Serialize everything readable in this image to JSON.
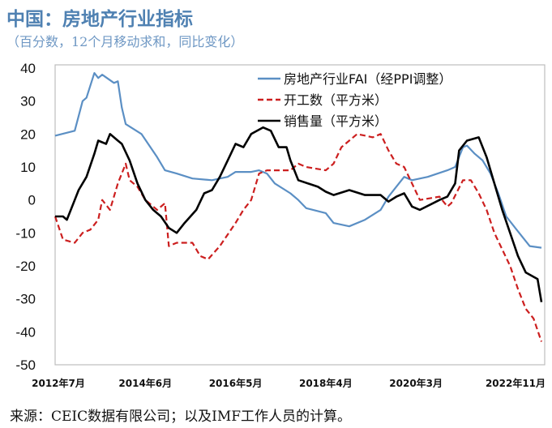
{
  "title": "中国：房地产行业指标",
  "subtitle": "（百分数，12个月移动求和，同比变化）",
  "source": "来源：CEIC数据有限公司；以及IMF工作人员的计算。",
  "chart_data": {
    "type": "line",
    "title": "中国：房地产行业指标",
    "ylim": [
      -50,
      40
    ],
    "yticks": [
      "40",
      "30",
      "20",
      "10",
      "0",
      "-10",
      "-20",
      "-30",
      "-40",
      "-50"
    ],
    "xlim": [
      "2012-07",
      "2022-11"
    ],
    "xticks": [
      {
        "date": "2012-07",
        "label": "2012年7月"
      },
      {
        "date": "2014-06",
        "label": "2014年6月"
      },
      {
        "date": "2016-05",
        "label": "2016年5月"
      },
      {
        "date": "2018-04",
        "label": "2018年4月"
      },
      {
        "date": "2020-03",
        "label": "2020年3月"
      },
      {
        "date": "2022-11",
        "label": "2022年11月"
      }
    ],
    "grid": false,
    "legend_placement": "top-center",
    "series": [
      {
        "name": "房地产行业FAI（经PPI调整）",
        "color": "#5b8fc4",
        "style": "solid",
        "points": [
          [
            "2012-07",
            19.5
          ],
          [
            "2012-12",
            21
          ],
          [
            "2013-02",
            30
          ],
          [
            "2013-03",
            31
          ],
          [
            "2013-05",
            38.5
          ],
          [
            "2013-06",
            37
          ],
          [
            "2013-07",
            38
          ],
          [
            "2013-10",
            35.5
          ],
          [
            "2013-11",
            36
          ],
          [
            "2013-12",
            28
          ],
          [
            "2014-01",
            23
          ],
          [
            "2014-05",
            20
          ],
          [
            "2014-09",
            13
          ],
          [
            "2014-11",
            9
          ],
          [
            "2015-02",
            8
          ],
          [
            "2015-06",
            6.5
          ],
          [
            "2015-11",
            6
          ],
          [
            "2016-03",
            7
          ],
          [
            "2016-05",
            8.5
          ],
          [
            "2016-09",
            8.5
          ],
          [
            "2016-11",
            9
          ],
          [
            "2017-01",
            8
          ],
          [
            "2017-03",
            5
          ],
          [
            "2017-07",
            2
          ],
          [
            "2017-09",
            0
          ],
          [
            "2017-11",
            -2.5
          ],
          [
            "2018-04",
            -4
          ],
          [
            "2018-06",
            -7
          ],
          [
            "2018-10",
            -8
          ],
          [
            "2019-02",
            -6
          ],
          [
            "2019-06",
            -3
          ],
          [
            "2019-08",
            1
          ],
          [
            "2019-12",
            7
          ],
          [
            "2020-02",
            6
          ],
          [
            "2020-06",
            7
          ],
          [
            "2020-11",
            9
          ],
          [
            "2021-01",
            10
          ],
          [
            "2021-03",
            16
          ],
          [
            "2021-04",
            16.5
          ],
          [
            "2021-06",
            14
          ],
          [
            "2021-08",
            12
          ],
          [
            "2021-10",
            8
          ],
          [
            "2021-12",
            2
          ],
          [
            "2022-02",
            -5
          ],
          [
            "2022-04",
            -8
          ],
          [
            "2022-06",
            -11
          ],
          [
            "2022-08",
            -14
          ],
          [
            "2022-11",
            -14.5
          ]
        ]
      },
      {
        "name": "开工数（平方米）",
        "color": "#cc1f1f",
        "style": "dashed",
        "points": [
          [
            "2012-07",
            -5
          ],
          [
            "2012-09",
            -12
          ],
          [
            "2012-12",
            -13
          ],
          [
            "2013-02",
            -10
          ],
          [
            "2013-04",
            -9
          ],
          [
            "2013-06",
            -6
          ],
          [
            "2013-07",
            0
          ],
          [
            "2013-09",
            -3
          ],
          [
            "2013-11",
            5
          ],
          [
            "2014-01",
            11
          ],
          [
            "2014-02",
            6
          ],
          [
            "2014-04",
            4
          ],
          [
            "2014-06",
            0
          ],
          [
            "2014-08",
            -2
          ],
          [
            "2014-09",
            -3
          ],
          [
            "2014-11",
            -1
          ],
          [
            "2014-12",
            -14
          ],
          [
            "2015-02",
            -13
          ],
          [
            "2015-06",
            -13
          ],
          [
            "2015-08",
            -17
          ],
          [
            "2015-10",
            -18
          ],
          [
            "2016-01",
            -14
          ],
          [
            "2016-05",
            -7
          ],
          [
            "2016-07",
            -3
          ],
          [
            "2016-09",
            0
          ],
          [
            "2016-11",
            8
          ],
          [
            "2017-01",
            9
          ],
          [
            "2017-07",
            9
          ],
          [
            "2017-09",
            11
          ],
          [
            "2017-11",
            10
          ],
          [
            "2018-04",
            9
          ],
          [
            "2018-06",
            11
          ],
          [
            "2018-08",
            16
          ],
          [
            "2018-12",
            20
          ],
          [
            "2019-04",
            19
          ],
          [
            "2019-06",
            20
          ],
          [
            "2019-08",
            15
          ],
          [
            "2019-10",
            11
          ],
          [
            "2019-12",
            10
          ],
          [
            "2020-02",
            5
          ],
          [
            "2020-04",
            0
          ],
          [
            "2020-09",
            1
          ],
          [
            "2020-11",
            -2
          ],
          [
            "2020-12",
            -1
          ],
          [
            "2021-03",
            6
          ],
          [
            "2021-05",
            6
          ],
          [
            "2021-07",
            2
          ],
          [
            "2021-09",
            -3
          ],
          [
            "2021-11",
            -10
          ],
          [
            "2022-01",
            -15
          ],
          [
            "2022-03",
            -20
          ],
          [
            "2022-05",
            -27
          ],
          [
            "2022-07",
            -33
          ],
          [
            "2022-09",
            -36
          ],
          [
            "2022-11",
            -43
          ]
        ]
      },
      {
        "name": "销售量（平方米）",
        "color": "#000000",
        "style": "solid",
        "points": [
          [
            "2012-07",
            -5
          ],
          [
            "2012-09",
            -5
          ],
          [
            "2012-10",
            -6
          ],
          [
            "2012-12",
            0
          ],
          [
            "2013-01",
            3
          ],
          [
            "2013-03",
            7
          ],
          [
            "2013-05",
            14
          ],
          [
            "2013-06",
            18
          ],
          [
            "2013-08",
            17
          ],
          [
            "2013-09",
            20
          ],
          [
            "2013-11",
            18
          ],
          [
            "2013-12",
            17
          ],
          [
            "2014-02",
            12
          ],
          [
            "2014-04",
            5
          ],
          [
            "2014-06",
            0
          ],
          [
            "2014-08",
            -3
          ],
          [
            "2014-10",
            -5
          ],
          [
            "2014-12",
            -8.5
          ],
          [
            "2015-02",
            -10
          ],
          [
            "2015-04",
            -7
          ],
          [
            "2015-07",
            -3
          ],
          [
            "2015-09",
            2
          ],
          [
            "2015-11",
            3
          ],
          [
            "2016-01",
            7
          ],
          [
            "2016-03",
            12
          ],
          [
            "2016-05",
            17
          ],
          [
            "2016-07",
            16
          ],
          [
            "2016-09",
            20
          ],
          [
            "2016-12",
            22
          ],
          [
            "2017-02",
            21
          ],
          [
            "2017-04",
            16
          ],
          [
            "2017-06",
            16
          ],
          [
            "2017-07",
            12
          ],
          [
            "2017-09",
            6
          ],
          [
            "2018-02",
            4
          ],
          [
            "2018-04",
            2.5
          ],
          [
            "2018-06",
            1.5
          ],
          [
            "2018-10",
            3
          ],
          [
            "2019-02",
            1.5
          ],
          [
            "2019-06",
            1.5
          ],
          [
            "2019-08",
            -0.5
          ],
          [
            "2019-10",
            1
          ],
          [
            "2019-12",
            2
          ],
          [
            "2020-02",
            -2
          ],
          [
            "2020-04",
            -3
          ],
          [
            "2020-09",
            0
          ],
          [
            "2020-11",
            1
          ],
          [
            "2021-01",
            5
          ],
          [
            "2021-02",
            15
          ],
          [
            "2021-04",
            18
          ],
          [
            "2021-07",
            19
          ],
          [
            "2021-09",
            13
          ],
          [
            "2021-11",
            5
          ],
          [
            "2022-01",
            -3
          ],
          [
            "2022-03",
            -10
          ],
          [
            "2022-05",
            -17
          ],
          [
            "2022-07",
            -22
          ],
          [
            "2022-10",
            -24
          ],
          [
            "2022-11",
            -31
          ]
        ]
      }
    ]
  }
}
